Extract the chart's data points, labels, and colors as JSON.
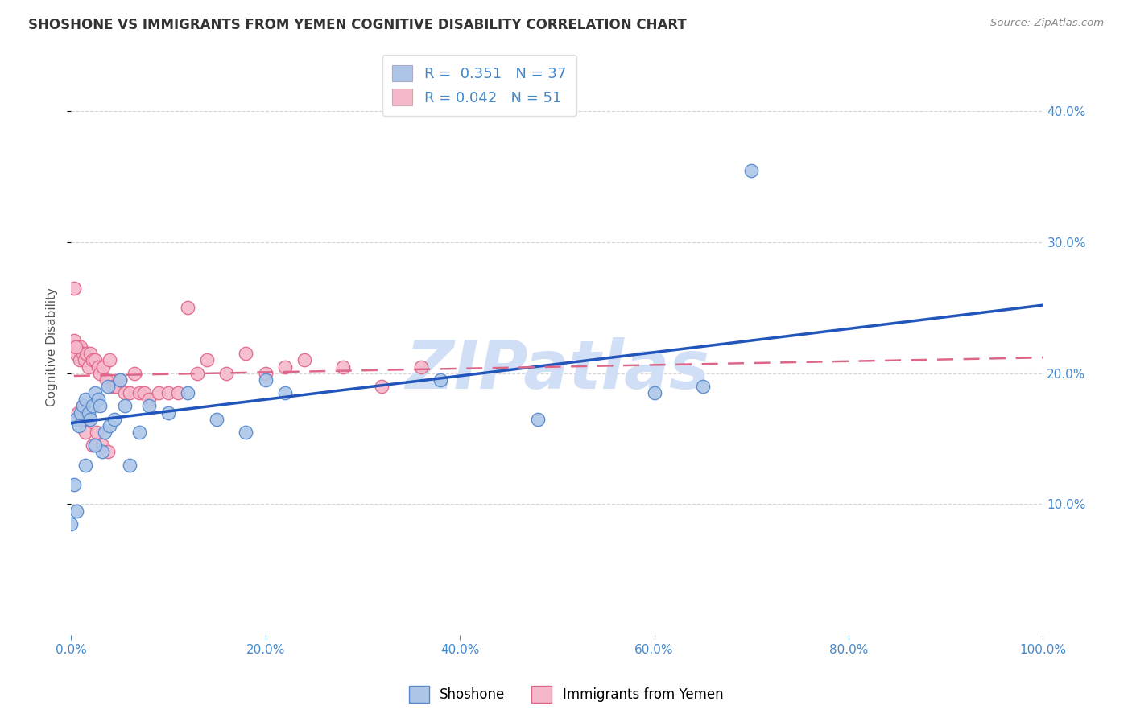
{
  "title": "SHOSHONE VS IMMIGRANTS FROM YEMEN COGNITIVE DISABILITY CORRELATION CHART",
  "source": "Source: ZipAtlas.com",
  "ylabel": "Cognitive Disability",
  "xlim": [
    0,
    1.0
  ],
  "ylim": [
    0.0,
    0.44
  ],
  "yticks_right": [
    0.1,
    0.2,
    0.3,
    0.4
  ],
  "xticks": [
    0.0,
    0.2,
    0.4,
    0.6,
    0.8,
    1.0
  ],
  "shoshone_color": "#adc6e8",
  "shoshone_edge": "#5588cc",
  "yemen_color": "#f5b8cb",
  "yemen_edge": "#e06688",
  "line_blue": "#2255bb",
  "line_pink": "#dd6688",
  "watermark": "ZIPatlas",
  "watermark_color": "#d0dff5",
  "grid_color": "#cccccc",
  "bg_color": "#ffffff",
  "axis_color": "#4488cc",
  "title_color": "#333333",
  "shoshone_x": [
    0.005,
    0.008,
    0.01,
    0.012,
    0.015,
    0.018,
    0.02,
    0.022,
    0.025,
    0.028,
    0.03,
    0.032,
    0.035,
    0.038,
    0.04,
    0.045,
    0.05,
    0.055,
    0.06,
    0.07,
    0.08,
    0.1,
    0.12,
    0.15,
    0.18,
    0.2,
    0.22,
    0.38,
    0.48,
    0.6,
    0.65,
    0.7,
    0.0,
    0.003,
    0.006,
    0.015,
    0.025
  ],
  "shoshone_y": [
    0.165,
    0.16,
    0.17,
    0.175,
    0.18,
    0.17,
    0.165,
    0.175,
    0.185,
    0.18,
    0.175,
    0.14,
    0.155,
    0.19,
    0.16,
    0.165,
    0.195,
    0.175,
    0.13,
    0.155,
    0.175,
    0.17,
    0.185,
    0.165,
    0.155,
    0.195,
    0.185,
    0.195,
    0.165,
    0.185,
    0.19,
    0.355,
    0.085,
    0.115,
    0.095,
    0.13,
    0.145
  ],
  "yemen_x": [
    0.003,
    0.005,
    0.007,
    0.009,
    0.01,
    0.012,
    0.014,
    0.016,
    0.018,
    0.02,
    0.022,
    0.025,
    0.028,
    0.03,
    0.033,
    0.036,
    0.04,
    0.043,
    0.046,
    0.05,
    0.055,
    0.06,
    0.065,
    0.07,
    0.075,
    0.08,
    0.09,
    0.1,
    0.11,
    0.12,
    0.13,
    0.14,
    0.16,
    0.18,
    0.2,
    0.22,
    0.24,
    0.28,
    0.32,
    0.36,
    0.003,
    0.005,
    0.007,
    0.009,
    0.012,
    0.015,
    0.018,
    0.022,
    0.026,
    0.032,
    0.038
  ],
  "yemen_y": [
    0.225,
    0.215,
    0.22,
    0.21,
    0.22,
    0.215,
    0.21,
    0.215,
    0.205,
    0.215,
    0.21,
    0.21,
    0.205,
    0.2,
    0.205,
    0.195,
    0.21,
    0.19,
    0.19,
    0.195,
    0.185,
    0.185,
    0.2,
    0.185,
    0.185,
    0.18,
    0.185,
    0.185,
    0.185,
    0.25,
    0.2,
    0.21,
    0.2,
    0.215,
    0.2,
    0.205,
    0.21,
    0.205,
    0.19,
    0.205,
    0.265,
    0.22,
    0.17,
    0.165,
    0.175,
    0.155,
    0.165,
    0.145,
    0.155,
    0.145,
    0.14
  ],
  "blue_line_x": [
    0.0,
    1.0
  ],
  "blue_line_y": [
    0.162,
    0.252
  ],
  "pink_line_x": [
    0.003,
    1.0
  ],
  "pink_line_y": [
    0.198,
    0.212
  ]
}
